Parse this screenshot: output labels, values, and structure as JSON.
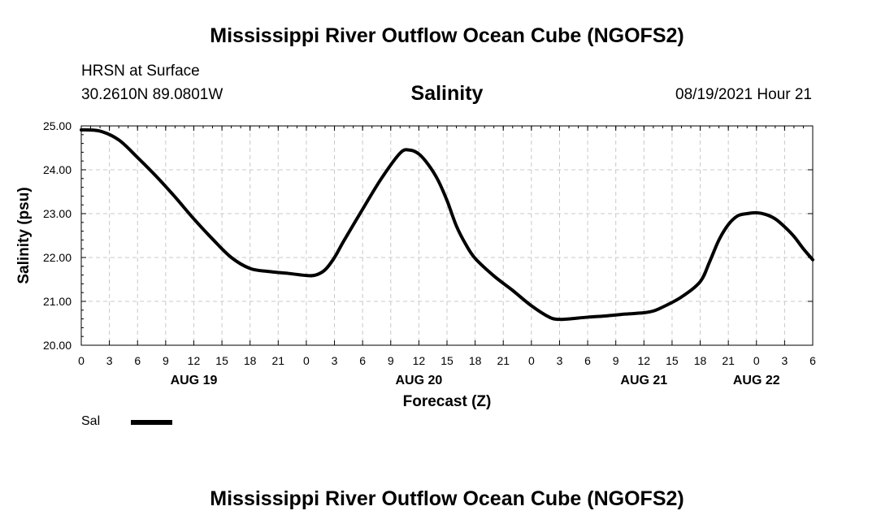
{
  "header": {
    "title": "Mississippi River Outflow Ocean Cube (NGOFS2)",
    "station": "HRSN at Surface",
    "coordinates": "30.2610N  89.0801W",
    "variable": "Salinity",
    "datetime": "08/19/2021 Hour 21"
  },
  "footer": {
    "title": "Mississippi River Outflow Ocean Cube (NGOFS2)"
  },
  "legend": {
    "label": "Sal"
  },
  "colors": {
    "line": "#000000",
    "grid": "#c8c8c8"
  },
  "chart_data": {
    "type": "line",
    "title": "Salinity",
    "xlabel": "Forecast (Z)",
    "ylabel": "Salinity (psu)",
    "xlim": [
      0,
      78
    ],
    "ylim": [
      20.0,
      25.0
    ],
    "grid": true,
    "y_ticks": [
      "20.00",
      "21.00",
      "22.00",
      "23.00",
      "24.00",
      "25.00"
    ],
    "y_tick_values": [
      20,
      21,
      22,
      23,
      24,
      25
    ],
    "x_tick_labels": [
      "0",
      "3",
      "6",
      "9",
      "12",
      "15",
      "18",
      "21",
      "0",
      "3",
      "6",
      "9",
      "12",
      "15",
      "18",
      "21",
      "0",
      "3",
      "6",
      "9",
      "12",
      "15",
      "18",
      "21",
      "0",
      "3",
      "6"
    ],
    "date_labels": [
      {
        "label": "AUG 19",
        "hour": 12
      },
      {
        "label": "AUG 20",
        "hour": 36
      },
      {
        "label": "AUG 21",
        "hour": 60
      },
      {
        "label": "AUG 22",
        "hour": 72
      }
    ],
    "series": [
      {
        "name": "Sal",
        "x": [
          0,
          2,
          4,
          6,
          8,
          10,
          12,
          14,
          16,
          18,
          20,
          22,
          24,
          25,
          26,
          27,
          28,
          30,
          32,
          34,
          35,
          36,
          37,
          38,
          39,
          40,
          41,
          42,
          44,
          46,
          48,
          50,
          51,
          52,
          54,
          56,
          58,
          60,
          61,
          62,
          64,
          66,
          67,
          68,
          69,
          70,
          71,
          72,
          73,
          74,
          75,
          76,
          77,
          78
        ],
        "values": [
          24.91,
          24.88,
          24.68,
          24.28,
          23.85,
          23.38,
          22.88,
          22.42,
          22.0,
          21.75,
          21.68,
          21.64,
          21.59,
          21.6,
          21.72,
          22.0,
          22.38,
          23.1,
          23.8,
          24.38,
          24.45,
          24.36,
          24.12,
          23.78,
          23.3,
          22.72,
          22.3,
          21.98,
          21.58,
          21.25,
          20.9,
          20.63,
          20.59,
          20.6,
          20.64,
          20.67,
          20.71,
          20.74,
          20.78,
          20.87,
          21.1,
          21.45,
          21.9,
          22.4,
          22.75,
          22.95,
          23.0,
          23.02,
          22.98,
          22.88,
          22.7,
          22.48,
          22.2,
          21.95
        ]
      }
    ]
  }
}
